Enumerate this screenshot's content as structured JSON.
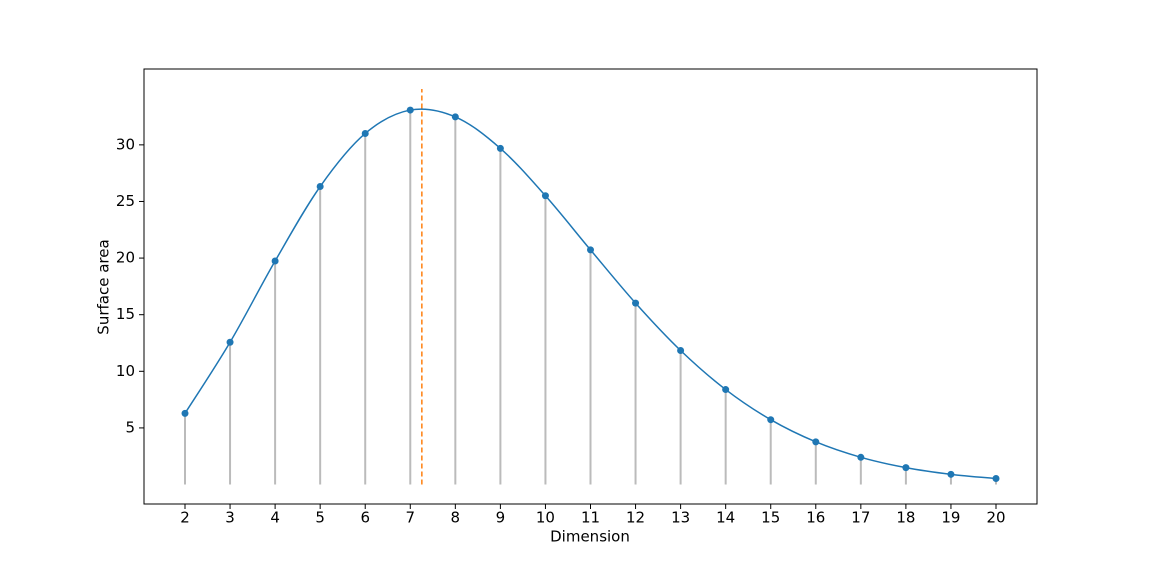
{
  "chart_data": {
    "type": "line",
    "x_label": "Dimension",
    "y_label": "Surface area",
    "x": [
      2,
      3,
      4,
      5,
      6,
      7,
      8,
      9,
      10,
      11,
      12,
      13,
      14,
      15,
      16,
      17,
      18,
      19,
      20
    ],
    "series": [
      {
        "color": "#1f77b4",
        "values": [
          6.283,
          12.566,
          19.739,
          26.319,
          31.006,
          33.073,
          32.47,
          29.687,
          25.502,
          20.725,
          16.023,
          11.838,
          8.389,
          5.725,
          3.77,
          2.405,
          1.491,
          0.9,
          0.53
        ]
      }
    ],
    "stem_color": "#bbbbbb",
    "vline": {
      "x": 7.2569,
      "color": "#ff7f0e"
    },
    "xlim": [
      1.09,
      20.91
    ],
    "ylim": [
      -1.72,
      36.7
    ],
    "xticks": [
      2,
      3,
      4,
      5,
      6,
      7,
      8,
      9,
      10,
      11,
      12,
      13,
      14,
      15,
      16,
      17,
      18,
      19,
      20
    ],
    "yticks": [
      5,
      10,
      15,
      20,
      25,
      30
    ]
  }
}
